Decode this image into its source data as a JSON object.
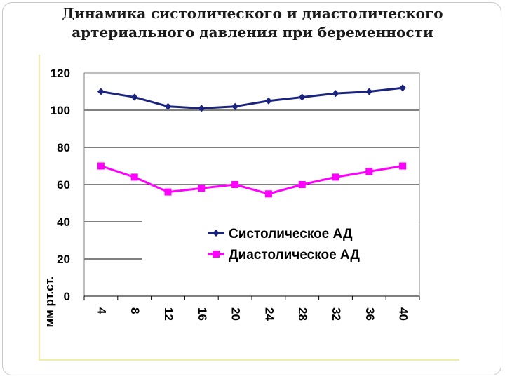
{
  "title_line1": "Динамика систолического и диастолического",
  "title_line2": "артериального давления при беременности",
  "chart_data": {
    "type": "line",
    "title": "Динамика систолического и диастолического артериального давления при беременности",
    "xlabel": "",
    "ylabel": "мм рт.ст.",
    "categories": [
      "4",
      "8",
      "12",
      "16",
      "20",
      "24",
      "28",
      "32",
      "36",
      "40"
    ],
    "ylim": [
      0,
      120
    ],
    "yticks": [
      0,
      20,
      40,
      60,
      80,
      100,
      120
    ],
    "grid": true,
    "legend_position": "center-right",
    "series": [
      {
        "name": "Систолическое АД",
        "color": "#1a237e",
        "marker": "diamond",
        "values": [
          110,
          107,
          102,
          101,
          102,
          105,
          107,
          109,
          110,
          112
        ]
      },
      {
        "name": "Диастолическое АД",
        "color": "#ff00ff",
        "marker": "square",
        "values": [
          70,
          64,
          56,
          58,
          60,
          55,
          60,
          64,
          67,
          70
        ]
      }
    ]
  }
}
